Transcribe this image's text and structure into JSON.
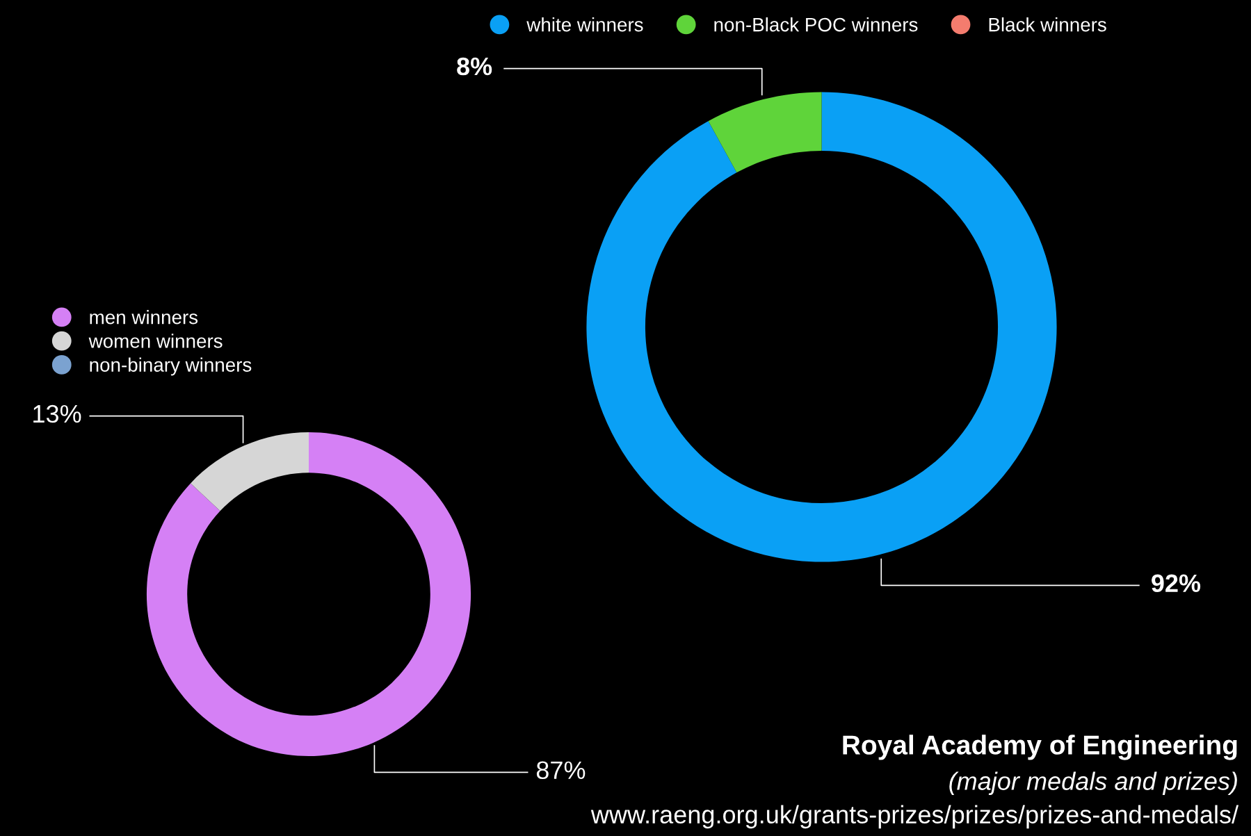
{
  "chart_data": [
    {
      "type": "donut",
      "categories": [
        "white winners",
        "non-Black POC winners",
        "Black winners"
      ],
      "values": [
        92,
        8,
        0
      ],
      "value_labels": [
        "92%",
        "8%",
        null
      ],
      "colors": [
        "#0aa0f5",
        "#5fd43a",
        "#f47c6e"
      ],
      "legend": "top",
      "title": "Royal Academy of Engineering",
      "subtitle": "(major medals and prizes)",
      "annotations": [
        "www.raeng.org.uk/grants-prizes/prizes/prizes-and-medals/"
      ]
    },
    {
      "type": "donut",
      "categories": [
        "men winners",
        "women winners",
        "non-binary winners"
      ],
      "values": [
        87,
        13,
        0
      ],
      "value_labels": [
        "87%",
        "13%",
        null
      ],
      "colors": [
        "#d580f5",
        "#d6d6d6",
        "#7ba2d0"
      ],
      "legend": "top left"
    }
  ]
}
